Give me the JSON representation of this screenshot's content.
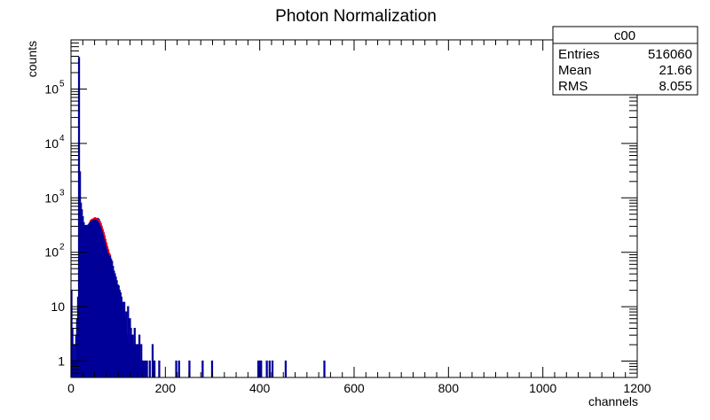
{
  "chart_data": {
    "type": "histogram",
    "title": "Photon Normalization",
    "xlabel": "channels",
    "ylabel": "counts",
    "x_scale": "linear",
    "y_scale": "log",
    "xlim": [
      0,
      1200
    ],
    "ylim": [
      0.5,
      800000
    ],
    "x_ticks": [
      0,
      200,
      400,
      600,
      800,
      1000,
      1200
    ],
    "x_tick_labels": [
      "0",
      "200",
      "400",
      "600",
      "800",
      "1000",
      "1200"
    ],
    "y_ticks": [
      1,
      10,
      100,
      1000,
      10000,
      100000
    ],
    "y_tick_labels": [
      {
        "base": "1",
        "exp": ""
      },
      {
        "base": "10",
        "exp": ""
      },
      {
        "base": "10",
        "exp": "2"
      },
      {
        "base": "10",
        "exp": "3"
      },
      {
        "base": "10",
        "exp": "4"
      },
      {
        "base": "10",
        "exp": "5"
      }
    ],
    "grid": false,
    "histogram_color": "#000099",
    "fit_color": "#ff0000",
    "histogram": [
      [
        0,
        20
      ],
      [
        2,
        4
      ],
      [
        4,
        1
      ],
      [
        6,
        2
      ],
      [
        8,
        1
      ],
      [
        10,
        3
      ],
      [
        12,
        6
      ],
      [
        14,
        15
      ],
      [
        16,
        380000
      ],
      [
        18,
        3000
      ],
      [
        20,
        800
      ],
      [
        22,
        600
      ],
      [
        24,
        450
      ],
      [
        26,
        350
      ],
      [
        28,
        310
      ],
      [
        30,
        300
      ],
      [
        32,
        310
      ],
      [
        34,
        300
      ],
      [
        36,
        320
      ],
      [
        38,
        340
      ],
      [
        40,
        360
      ],
      [
        42,
        380
      ],
      [
        44,
        390
      ],
      [
        46,
        400
      ],
      [
        48,
        420
      ],
      [
        50,
        430
      ],
      [
        52,
        420
      ],
      [
        54,
        410
      ],
      [
        56,
        420
      ],
      [
        58,
        400
      ],
      [
        60,
        370
      ],
      [
        62,
        340
      ],
      [
        64,
        300
      ],
      [
        66,
        260
      ],
      [
        68,
        230
      ],
      [
        70,
        200
      ],
      [
        72,
        170
      ],
      [
        74,
        145
      ],
      [
        76,
        125
      ],
      [
        78,
        110
      ],
      [
        80,
        95
      ],
      [
        82,
        85
      ],
      [
        84,
        75
      ],
      [
        86,
        68
      ],
      [
        88,
        55
      ],
      [
        90,
        45
      ],
      [
        92,
        40
      ],
      [
        94,
        35
      ],
      [
        96,
        30
      ],
      [
        98,
        25
      ],
      [
        100,
        24
      ],
      [
        102,
        20
      ],
      [
        104,
        18
      ],
      [
        106,
        15
      ],
      [
        108,
        12
      ],
      [
        110,
        8
      ],
      [
        112,
        12
      ],
      [
        114,
        6
      ],
      [
        116,
        8
      ],
      [
        118,
        3
      ],
      [
        120,
        10
      ],
      [
        122,
        2
      ],
      [
        124,
        6
      ],
      [
        126,
        4
      ],
      [
        128,
        1
      ],
      [
        130,
        3
      ],
      [
        132,
        2
      ],
      [
        134,
        4
      ],
      [
        136,
        2
      ],
      [
        138,
        1
      ],
      [
        140,
        2
      ],
      [
        142,
        1
      ],
      [
        144,
        3
      ],
      [
        146,
        1
      ],
      [
        148,
        2
      ],
      [
        150,
        1
      ],
      [
        152,
        1
      ],
      [
        156,
        1
      ],
      [
        160,
        1
      ],
      [
        166,
        1
      ],
      [
        172,
        2
      ],
      [
        176,
        1
      ],
      [
        186,
        1
      ],
      [
        222,
        1
      ],
      [
        228,
        1
      ],
      [
        250,
        1
      ],
      [
        278,
        1
      ],
      [
        298,
        1
      ],
      [
        396,
        1
      ],
      [
        400,
        1
      ],
      [
        402,
        1
      ],
      [
        414,
        1
      ],
      [
        420,
        1
      ],
      [
        426,
        1
      ],
      [
        454,
        1
      ],
      [
        536,
        1
      ]
    ],
    "fit_curve": [
      [
        40,
        375
      ],
      [
        44,
        398
      ],
      [
        48,
        415
      ],
      [
        52,
        418
      ],
      [
        56,
        405
      ],
      [
        60,
        370
      ],
      [
        64,
        315
      ],
      [
        68,
        250
      ],
      [
        72,
        185
      ],
      [
        76,
        135
      ],
      [
        80,
        100
      ],
      [
        84,
        85
      ]
    ],
    "stats_box": {
      "title": "c00",
      "rows": [
        {
          "label": "Entries",
          "value": "516060"
        },
        {
          "label": "Mean",
          "value": "21.66"
        },
        {
          "label": "RMS",
          "value": "8.055"
        }
      ]
    }
  }
}
